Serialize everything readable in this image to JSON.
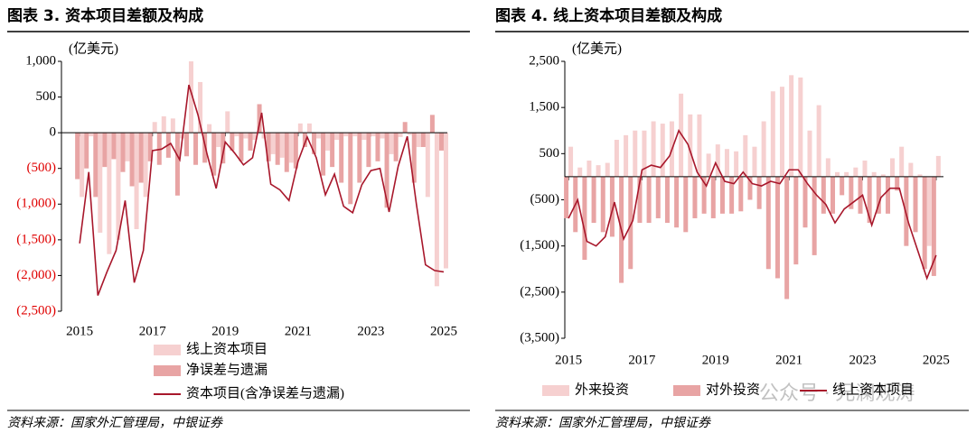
{
  "chart_data": [
    {
      "type": "combo",
      "title": "图表 3. 资本项目差额及构成",
      "y_label": "(亿美元)",
      "source": "资料来源：国家外汇管理局，中银证券",
      "x": [
        2015,
        2015.25,
        2015.5,
        2015.75,
        2016,
        2016.25,
        2016.5,
        2016.75,
        2017,
        2017.25,
        2017.5,
        2017.75,
        2018,
        2018.25,
        2018.5,
        2018.75,
        2019,
        2019.25,
        2019.5,
        2019.75,
        2020,
        2020.25,
        2020.5,
        2020.75,
        2021,
        2021.25,
        2021.5,
        2021.75,
        2022,
        2022.25,
        2022.5,
        2022.75,
        2023,
        2023.25,
        2023.5,
        2023.75,
        2024,
        2024.25,
        2024.5,
        2024.75,
        2025
      ],
      "xlim": [
        2014.5,
        2025.1
      ],
      "xticks": [
        2015,
        2017,
        2019,
        2021,
        2023,
        2025
      ],
      "ylim": [
        -2500,
        1000
      ],
      "yticks": [
        {
          "value": 1000,
          "label": "1,000"
        },
        500,
        0,
        {
          "value": -500,
          "label": "(500)"
        },
        {
          "value": -1000,
          "label": "(1,000)"
        },
        {
          "value": -1500,
          "label": "(1,500)"
        },
        {
          "value": -2000,
          "label": "(2,000)"
        },
        {
          "value": -2500,
          "label": "(2,500)"
        }
      ],
      "negative_tick_color": "#e00000",
      "legend": "bottom",
      "series": [
        {
          "name": "线上资本项目",
          "type": "bar",
          "color": "#f6d0d0",
          "values": [
            -900,
            -50,
            -1400,
            -1700,
            -1500,
            -400,
            -1350,
            -900,
            150,
            230,
            200,
            -80,
            1000,
            710,
            120,
            -200,
            300,
            -50,
            -80,
            -100,
            -80,
            -300,
            -350,
            -420,
            130,
            130,
            -80,
            -250,
            -100,
            -50,
            -50,
            -100,
            -50,
            -80,
            -300,
            -60,
            -30,
            -200,
            -900,
            -2150,
            -1900
          ]
        },
        {
          "name": "净误差与遗漏",
          "type": "bar",
          "color": "#e8a4a4",
          "values": [
            -650,
            -500,
            -900,
            -480,
            -370,
            -550,
            -750,
            -700,
            -400,
            -450,
            -350,
            -880,
            -330,
            -450,
            -420,
            -600,
            -430,
            -250,
            -400,
            -250,
            400,
            -400,
            -450,
            -550,
            -500,
            -200,
            -300,
            -600,
            -480,
            -700,
            -1000,
            -700,
            -480,
            -400,
            -1050,
            -400,
            150,
            -700,
            -200,
            250,
            -250
          ]
        },
        {
          "name": "资本项目(含净误差与遗漏)",
          "type": "line",
          "color": "#a8172b",
          "values": [
            -1550,
            -550,
            -2280,
            -1950,
            -1650,
            -950,
            -2100,
            -1650,
            -250,
            -230,
            -150,
            -380,
            670,
            250,
            -300,
            -780,
            -130,
            -280,
            -450,
            -350,
            280,
            -720,
            -800,
            -950,
            -400,
            -60,
            -350,
            -870,
            -580,
            -1030,
            -1120,
            -730,
            -530,
            -500,
            -1110,
            -470,
            -50,
            -1000,
            -1850,
            -1930,
            -1950
          ]
        }
      ]
    },
    {
      "type": "combo",
      "title": "图表 4. 线上资本项目差额及构成",
      "y_label": "(亿美元)",
      "source": "资料来源：国家外汇管理局，中银证券",
      "x": [
        2015,
        2015.25,
        2015.5,
        2015.75,
        2016,
        2016.25,
        2016.5,
        2016.75,
        2017,
        2017.25,
        2017.5,
        2017.75,
        2018,
        2018.25,
        2018.5,
        2018.75,
        2019,
        2019.25,
        2019.5,
        2019.75,
        2020,
        2020.25,
        2020.5,
        2020.75,
        2021,
        2021.25,
        2021.5,
        2021.75,
        2022,
        2022.25,
        2022.5,
        2022.75,
        2023,
        2023.25,
        2023.5,
        2023.75,
        2024,
        2024.25,
        2024.5,
        2024.75,
        2025
      ],
      "xlim": [
        2014.9,
        2025.2
      ],
      "xticks": [
        2015,
        2017,
        2019,
        2021,
        2023,
        2025
      ],
      "ylim": [
        -3500,
        2500
      ],
      "yticks": [
        {
          "value": 2500,
          "label": "2,500"
        },
        {
          "value": 1500,
          "label": "1,500"
        },
        500,
        {
          "value": -500,
          "label": "(500)"
        },
        {
          "value": -1500,
          "label": "(1,500)"
        },
        {
          "value": -2500,
          "label": "(2,500)"
        },
        {
          "value": -3500,
          "label": "(3,500)"
        }
      ],
      "legend": "bottom",
      "series": [
        {
          "name": "外来投资",
          "type": "bar",
          "color": "#f6d0d0",
          "values": [
            650,
            200,
            350,
            250,
            300,
            800,
            900,
            1000,
            1000,
            1200,
            1150,
            1200,
            1800,
            1350,
            1350,
            500,
            700,
            600,
            550,
            900,
            650,
            1200,
            1850,
            1950,
            2200,
            2150,
            1000,
            1550,
            400,
            100,
            100,
            200,
            350,
            100,
            50,
            400,
            650,
            300,
            50,
            -1500,
            450
          ]
        },
        {
          "name": "对外投资",
          "type": "bar",
          "color": "#e8a4a4",
          "values": [
            -900,
            -1200,
            -1800,
            -1000,
            -1200,
            -1300,
            -2300,
            -2000,
            -1000,
            -1000,
            -900,
            -1000,
            -1100,
            -1200,
            -900,
            -800,
            -900,
            -800,
            -800,
            -750,
            -500,
            -700,
            -2000,
            -2200,
            -2650,
            -1900,
            -1100,
            -1700,
            -800,
            -800,
            -400,
            -700,
            -800,
            -1000,
            -800,
            -800,
            -300,
            -1500,
            -1200,
            -2000,
            -2150
          ]
        },
        {
          "name": "线上资本项目",
          "type": "line",
          "color": "#a8172b",
          "values": [
            -900,
            -500,
            -1400,
            -1500,
            -1300,
            -550,
            -1350,
            -950,
            150,
            250,
            200,
            450,
            1000,
            700,
            100,
            -200,
            300,
            -100,
            -150,
            100,
            -150,
            -200,
            -100,
            -150,
            150,
            150,
            -150,
            -400,
            -600,
            -1000,
            -700,
            -550,
            -400,
            -1050,
            -450,
            -250,
            -250,
            -1000,
            -1600,
            -2200,
            -1700
          ]
        }
      ]
    }
  ],
  "watermark": "公众号 · 兄澜观涛"
}
